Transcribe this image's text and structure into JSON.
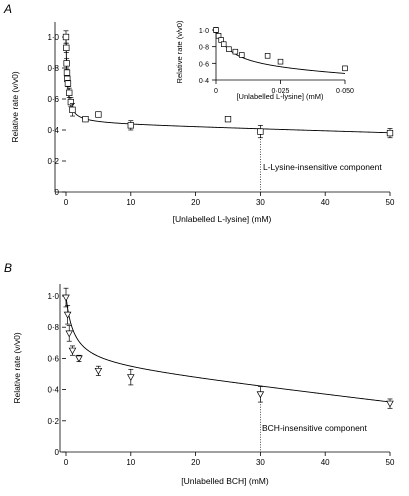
{
  "chart_data": [
    {
      "panel": "A",
      "type": "scatter",
      "xlabel": "[Unlabelled L-lysine] (mM)",
      "ylabel": "Relative rate (v/v0)",
      "xlim": [
        0,
        50
      ],
      "ylim": [
        0,
        1.0
      ],
      "xticks": [
        0,
        10,
        20,
        30,
        40,
        50
      ],
      "yticks": [
        0,
        0.2,
        0.4,
        0.6,
        0.8,
        1.0
      ],
      "xtick_labels": [
        "0",
        "10",
        "20",
        "30",
        "40",
        "50"
      ],
      "ytick_labels": [
        "0",
        "0·2",
        "0·4",
        "0·6",
        "0·8",
        "1·0"
      ],
      "marker": "square",
      "points": [
        {
          "x": 0,
          "y": 1.0,
          "err": 0.04
        },
        {
          "x": 0.05,
          "y": 0.93,
          "err": 0.03
        },
        {
          "x": 0.1,
          "y": 0.83,
          "err": 0.03
        },
        {
          "x": 0.15,
          "y": 0.77,
          "err": 0.02
        },
        {
          "x": 0.2,
          "y": 0.73,
          "err": 0.02
        },
        {
          "x": 0.3,
          "y": 0.7,
          "err": 0.02
        },
        {
          "x": 0.5,
          "y": 0.64,
          "err": 0.03
        },
        {
          "x": 0.75,
          "y": 0.58,
          "err": 0.03
        },
        {
          "x": 1,
          "y": 0.53,
          "err": 0.04
        },
        {
          "x": 3,
          "y": 0.47,
          "err": 0.01
        },
        {
          "x": 5,
          "y": 0.5,
          "err": 0.01
        },
        {
          "x": 10,
          "y": 0.43,
          "err": 0.03
        },
        {
          "x": 25,
          "y": 0.47,
          "err": 0.01
        },
        {
          "x": 30,
          "y": 0.39,
          "err": 0.04
        },
        {
          "x": 50,
          "y": 0.38,
          "err": 0.03
        }
      ],
      "fit": {
        "ymin": 0.44,
        "slope": -0.0012,
        "ki": 0.2
      },
      "annotation": {
        "x": 30,
        "text": "L-Lysine-insensitive component"
      },
      "inset": {
        "xlabel": "[Unlabelled L-lysine] (mM)",
        "ylabel": "Relative rate (v/v0)",
        "xlim": [
          0,
          0.05
        ],
        "ylim": [
          0.4,
          1.0
        ],
        "xticks": [
          0,
          0.025,
          0.05
        ],
        "yticks": [
          0.4,
          0.6,
          0.8,
          1.0
        ],
        "xtick_labels": [
          "0",
          "0·025",
          "0·050"
        ],
        "ytick_labels": [
          "0·4",
          "0·6",
          "0·8",
          "1·0"
        ],
        "points": [
          {
            "x": 0,
            "y": 1.0,
            "err": 0.03
          },
          {
            "x": 0.001,
            "y": 0.93,
            "err": 0.02
          },
          {
            "x": 0.002,
            "y": 0.88,
            "err": 0.02
          },
          {
            "x": 0.003,
            "y": 0.83,
            "err": 0.02
          },
          {
            "x": 0.005,
            "y": 0.77,
            "err": 0.02
          },
          {
            "x": 0.0075,
            "y": 0.74,
            "err": 0.02
          },
          {
            "x": 0.01,
            "y": 0.7,
            "err": 0.02
          },
          {
            "x": 0.02,
            "y": 0.69,
            "err": 0.02
          },
          {
            "x": 0.025,
            "y": 0.62,
            "err": 0.01
          },
          {
            "x": 0.05,
            "y": 0.54,
            "err": 0.02
          }
        ]
      }
    },
    {
      "panel": "B",
      "type": "scatter",
      "xlabel": "[Unlabelled BCH] (mM)",
      "ylabel": "Relative rate (v/v0)",
      "xlim": [
        0,
        50
      ],
      "ylim": [
        0,
        1.0
      ],
      "xticks": [
        0,
        10,
        20,
        30,
        40,
        50
      ],
      "yticks": [
        0,
        0.2,
        0.4,
        0.6,
        0.8,
        1.0
      ],
      "xtick_labels": [
        "0",
        "10",
        "20",
        "30",
        "40",
        "50"
      ],
      "ytick_labels": [
        "0",
        "0·2",
        "0·4",
        "0·6",
        "0·8",
        "1·0"
      ],
      "marker": "triangle-down",
      "points": [
        {
          "x": 0,
          "y": 0.99,
          "err": 0.06
        },
        {
          "x": 0.25,
          "y": 0.88,
          "err": 0.06
        },
        {
          "x": 0.5,
          "y": 0.76,
          "err": 0.05
        },
        {
          "x": 1,
          "y": 0.65,
          "err": 0.03
        },
        {
          "x": 2,
          "y": 0.6,
          "err": 0.02
        },
        {
          "x": 5,
          "y": 0.52,
          "err": 0.03
        },
        {
          "x": 10,
          "y": 0.48,
          "err": 0.05
        },
        {
          "x": 30,
          "y": 0.37,
          "err": 0.05
        },
        {
          "x": 50,
          "y": 0.31,
          "err": 0.03
        }
      ],
      "fit": {
        "ymin": 0.55,
        "slope": -0.0048,
        "ki": 1.2
      },
      "annotation": {
        "x": 30,
        "text": "BCH-insensitive component"
      }
    }
  ],
  "panels": [
    {
      "label": "A",
      "xlabel": "[Unlabelled L-lysine] (mM)",
      "ylabel": "Relative rate (v/v0)",
      "annotation": "L-Lysine-insensitive component",
      "inset_xlabel": "[Unlabelled L-lysine] (mM)",
      "inset_ylabel": "Relative rate (v/v0)"
    },
    {
      "label": "B",
      "xlabel": "[Unlabelled BCH] (mM)",
      "ylabel": "Relative rate (v/v0)",
      "annotation": "BCH-insensitive component"
    }
  ]
}
